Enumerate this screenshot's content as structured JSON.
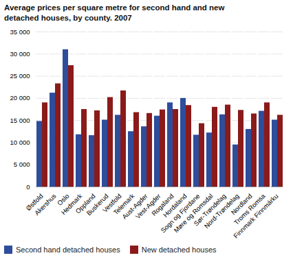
{
  "chart_data": {
    "type": "bar",
    "title": "Average prices per square metre for second hand and new\ndetached houses, by county. 2007",
    "categories": [
      "Østfold",
      "Akershus",
      "Oslo",
      "Hedmark",
      "Oppland",
      "Buskerud",
      "Vestfold",
      "Telemark",
      "Aust-Agder",
      "Vest-Agder",
      "Rogaland",
      "Hordaland",
      "Sogn og Fjordane",
      "Møre og Romsdal",
      "Sør-Trøndelag",
      "Nord-Trøndelag",
      "Nordland",
      "Troms Romsa",
      "Finnmark Finnmárku"
    ],
    "series": [
      {
        "name": "Second hand detached houses",
        "color": "#2E4D9B",
        "values": [
          14800,
          21200,
          31000,
          11800,
          11600,
          15100,
          16200,
          12500,
          13600,
          16000,
          19000,
          20000,
          11700,
          12200,
          16300,
          9500,
          13000,
          17100,
          15100
        ]
      },
      {
        "name": "New detached houses",
        "color": "#8B1A1A",
        "values": [
          19000,
          23300,
          27400,
          17500,
          17200,
          20200,
          21700,
          16800,
          16600,
          17400,
          17500,
          18400,
          14300,
          18000,
          18500,
          17300,
          16500,
          19000,
          16200
        ]
      }
    ],
    "ylim": [
      0,
      35000
    ],
    "yticks": [
      0,
      {
        "value": 5000,
        "label": "5 000"
      },
      {
        "value": 10000,
        "label": "10 000"
      },
      {
        "value": 15000,
        "label": "15 000"
      },
      {
        "value": 20000,
        "label": "20 000"
      },
      {
        "value": 25000,
        "label": "25 000"
      },
      {
        "value": 30000,
        "label": "30 000"
      },
      {
        "value": 35000,
        "label": "35 000"
      }
    ],
    "grid": true,
    "legend": "bottom"
  }
}
